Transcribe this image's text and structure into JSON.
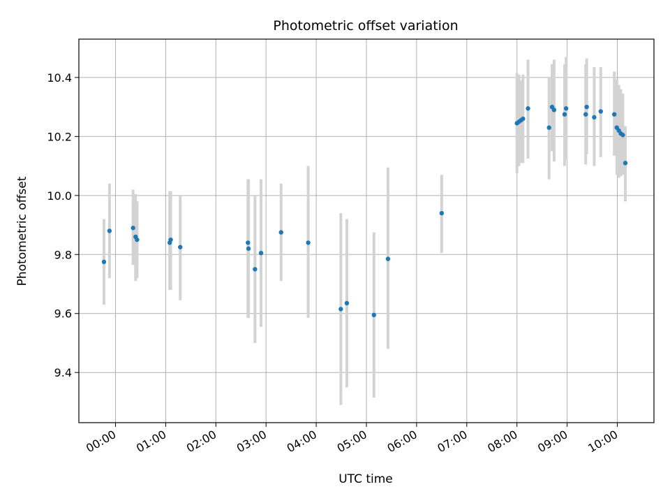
{
  "chart_data": {
    "type": "scatter",
    "title": "Photometric offset variation",
    "xlabel": "UTC time",
    "ylabel": "Photometric offset",
    "grid": true,
    "x_unit": "hours (UTC)",
    "xlim": [
      -0.73,
      10.73
    ],
    "ylim": [
      9.23,
      10.53
    ],
    "x_ticks": [
      0,
      1,
      2,
      3,
      4,
      5,
      6,
      7,
      8,
      9,
      10
    ],
    "x_tick_labels": [
      "00:00",
      "01:00",
      "02:00",
      "03:00",
      "04:00",
      "05:00",
      "06:00",
      "07:00",
      "08:00",
      "09:00",
      "10:00"
    ],
    "y_ticks": [
      9.4,
      9.6,
      9.8,
      10.0,
      10.2,
      10.4
    ],
    "y_tick_labels": [
      "9.4",
      "9.6",
      "9.8",
      "10.0",
      "10.2",
      "10.4"
    ],
    "colors": {
      "points": "#1f77b4",
      "error_bars": "#d3d3d3",
      "grid": "#b0b0b0"
    },
    "points": [
      {
        "x": -0.23,
        "y": 9.775,
        "lo": 9.63,
        "hi": 9.92
      },
      {
        "x": -0.12,
        "y": 9.88,
        "lo": 9.72,
        "hi": 10.04
      },
      {
        "x": 0.35,
        "y": 9.89,
        "lo": 9.765,
        "hi": 10.02
      },
      {
        "x": 0.4,
        "y": 9.86,
        "lo": 9.71,
        "hi": 10.005
      },
      {
        "x": 0.43,
        "y": 9.85,
        "lo": 9.72,
        "hi": 9.98
      },
      {
        "x": 1.08,
        "y": 9.84,
        "lo": 9.68,
        "hi": 10.015
      },
      {
        "x": 1.1,
        "y": 9.85,
        "lo": 9.68,
        "hi": 10.015
      },
      {
        "x": 1.29,
        "y": 9.825,
        "lo": 9.645,
        "hi": 10.0
      },
      {
        "x": 2.64,
        "y": 9.84,
        "lo": 9.585,
        "hi": 10.055
      },
      {
        "x": 2.65,
        "y": 9.82,
        "lo": 9.585,
        "hi": 10.055
      },
      {
        "x": 2.78,
        "y": 9.75,
        "lo": 9.5,
        "hi": 10.0
      },
      {
        "x": 2.9,
        "y": 9.805,
        "lo": 9.555,
        "hi": 10.055
      },
      {
        "x": 3.3,
        "y": 9.875,
        "lo": 9.71,
        "hi": 10.04
      },
      {
        "x": 3.84,
        "y": 9.84,
        "lo": 9.585,
        "hi": 10.1
      },
      {
        "x": 4.49,
        "y": 9.615,
        "lo": 9.29,
        "hi": 9.94
      },
      {
        "x": 4.61,
        "y": 9.635,
        "lo": 9.35,
        "hi": 9.92
      },
      {
        "x": 5.15,
        "y": 9.595,
        "lo": 9.315,
        "hi": 9.875
      },
      {
        "x": 5.43,
        "y": 9.785,
        "lo": 9.48,
        "hi": 10.095
      },
      {
        "x": 6.5,
        "y": 9.94,
        "lo": 9.805,
        "hi": 10.07
      },
      {
        "x": 8.0,
        "y": 10.245,
        "lo": 10.075,
        "hi": 10.415
      },
      {
        "x": 8.04,
        "y": 10.25,
        "lo": 10.1,
        "hi": 10.41
      },
      {
        "x": 8.08,
        "y": 10.255,
        "lo": 10.11,
        "hi": 10.39
      },
      {
        "x": 8.12,
        "y": 10.26,
        "lo": 10.11,
        "hi": 10.41
      },
      {
        "x": 8.22,
        "y": 10.295,
        "lo": 10.125,
        "hi": 10.46
      },
      {
        "x": 8.64,
        "y": 10.23,
        "lo": 10.055,
        "hi": 10.4
      },
      {
        "x": 8.7,
        "y": 10.3,
        "lo": 10.15,
        "hi": 10.445
      },
      {
        "x": 8.74,
        "y": 10.29,
        "lo": 10.115,
        "hi": 10.46
      },
      {
        "x": 8.95,
        "y": 10.275,
        "lo": 10.1,
        "hi": 10.445
      },
      {
        "x": 8.98,
        "y": 10.295,
        "lo": 10.12,
        "hi": 10.47
      },
      {
        "x": 9.37,
        "y": 10.275,
        "lo": 10.105,
        "hi": 10.445
      },
      {
        "x": 9.39,
        "y": 10.3,
        "lo": 10.14,
        "hi": 10.465
      },
      {
        "x": 9.54,
        "y": 10.265,
        "lo": 10.1,
        "hi": 10.435
      },
      {
        "x": 9.67,
        "y": 10.285,
        "lo": 10.13,
        "hi": 10.435
      },
      {
        "x": 9.94,
        "y": 10.275,
        "lo": 10.135,
        "hi": 10.42
      },
      {
        "x": 9.99,
        "y": 10.23,
        "lo": 10.07,
        "hi": 10.395
      },
      {
        "x": 10.03,
        "y": 10.22,
        "lo": 10.06,
        "hi": 10.375
      },
      {
        "x": 10.07,
        "y": 10.21,
        "lo": 10.065,
        "hi": 10.36
      },
      {
        "x": 10.11,
        "y": 10.205,
        "lo": 10.07,
        "hi": 10.345
      },
      {
        "x": 10.16,
        "y": 10.11,
        "lo": 9.98,
        "hi": 10.235
      }
    ]
  }
}
